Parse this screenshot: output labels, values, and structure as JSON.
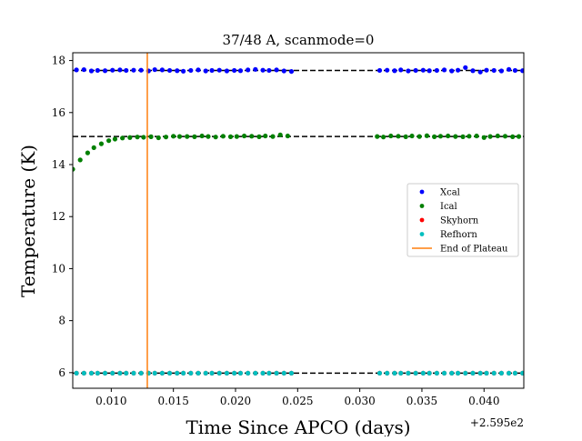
{
  "chart_data": {
    "type": "scatter",
    "title": "37/48 A, scanmode=0",
    "xlabel": "Time Since APCO (days)",
    "ylabel": "Temperature (K)",
    "x_offset_label": "+2.595e2",
    "xlim": [
      0.0069,
      0.0432
    ],
    "ylim": [
      5.4,
      18.3
    ],
    "x_ticks": [
      0.01,
      0.015,
      0.02,
      0.025,
      0.03,
      0.035,
      0.04
    ],
    "x_tick_labels": [
      "0.010",
      "0.015",
      "0.020",
      "0.025",
      "0.030",
      "0.035",
      "0.040"
    ],
    "y_ticks": [
      6,
      8,
      10,
      12,
      14,
      16,
      18
    ],
    "y_tick_labels": [
      "6",
      "8",
      "10",
      "12",
      "14",
      "16",
      "18"
    ],
    "grid": false,
    "legend_position": "center-right",
    "reference_lines": [
      17.62,
      15.08,
      5.98
    ],
    "end_of_plateau_x": 0.0129,
    "series": [
      {
        "name": "Xcal",
        "color": "#0000ff",
        "marker": "dot",
        "x": [
          0.0072,
          0.0078,
          0.0084,
          0.0089,
          0.0095,
          0.0101,
          0.0107,
          0.0112,
          0.0118,
          0.0124,
          0.013,
          0.0135,
          0.0141,
          0.0147,
          0.0153,
          0.0158,
          0.0164,
          0.017,
          0.0176,
          0.0181,
          0.0187,
          0.0193,
          0.0199,
          0.0204,
          0.021,
          0.0216,
          0.0222,
          0.0227,
          0.0233,
          0.0239,
          0.0245,
          0.0316,
          0.0322,
          0.0328,
          0.0333,
          0.0339,
          0.0345,
          0.0351,
          0.0356,
          0.0362,
          0.0368,
          0.0374,
          0.0379,
          0.0385,
          0.0391,
          0.0397,
          0.0402,
          0.0408,
          0.0414,
          0.042,
          0.0425,
          0.0431
        ],
        "y": [
          17.64,
          17.65,
          17.6,
          17.62,
          17.61,
          17.63,
          17.64,
          17.62,
          17.63,
          17.63,
          17.6,
          17.65,
          17.64,
          17.62,
          17.61,
          17.59,
          17.62,
          17.64,
          17.6,
          17.62,
          17.63,
          17.6,
          17.62,
          17.61,
          17.64,
          17.66,
          17.63,
          17.62,
          17.64,
          17.6,
          17.58,
          17.62,
          17.63,
          17.61,
          17.64,
          17.6,
          17.62,
          17.63,
          17.61,
          17.62,
          17.64,
          17.6,
          17.63,
          17.73,
          17.61,
          17.56,
          17.63,
          17.62,
          17.6,
          17.66,
          17.62,
          17.61
        ]
      },
      {
        "name": "Ical",
        "color": "#008000",
        "marker": "dot",
        "x": [
          0.0069,
          0.0075,
          0.0081,
          0.0086,
          0.0092,
          0.0098,
          0.0103,
          0.0109,
          0.0115,
          0.0121,
          0.0126,
          0.0132,
          0.0138,
          0.0144,
          0.015,
          0.0155,
          0.0161,
          0.0167,
          0.0173,
          0.0178,
          0.0184,
          0.019,
          0.0196,
          0.0201,
          0.0207,
          0.0213,
          0.0219,
          0.0224,
          0.023,
          0.0236,
          0.0242,
          0.0314,
          0.0319,
          0.0325,
          0.0331,
          0.0337,
          0.0342,
          0.0348,
          0.0354,
          0.036,
          0.0365,
          0.0371,
          0.0377,
          0.0383,
          0.0388,
          0.0394,
          0.04,
          0.0405,
          0.0411,
          0.0417,
          0.0423,
          0.0428
        ],
        "y": [
          13.82,
          14.18,
          14.45,
          14.65,
          14.8,
          14.92,
          14.98,
          15.02,
          15.04,
          15.06,
          15.05,
          15.07,
          15.03,
          15.06,
          15.09,
          15.08,
          15.08,
          15.07,
          15.1,
          15.08,
          15.06,
          15.09,
          15.07,
          15.08,
          15.1,
          15.09,
          15.07,
          15.1,
          15.08,
          15.14,
          15.1,
          15.08,
          15.06,
          15.1,
          15.09,
          15.07,
          15.1,
          15.08,
          15.11,
          15.07,
          15.09,
          15.1,
          15.08,
          15.07,
          15.09,
          15.1,
          15.04,
          15.08,
          15.1,
          15.09,
          15.07,
          15.08
        ]
      },
      {
        "name": "Skyhorn",
        "color": "#ff0000",
        "marker": "dot",
        "x": [
          0.0072,
          0.0078,
          0.0084,
          0.0089,
          0.0095,
          0.0101,
          0.0107,
          0.0112,
          0.0118,
          0.0124,
          0.013,
          0.0135,
          0.0141,
          0.0147,
          0.0153,
          0.0158,
          0.0164,
          0.017,
          0.0176,
          0.0181,
          0.0187,
          0.0193,
          0.0199,
          0.0204,
          0.021,
          0.0216,
          0.0222,
          0.0227,
          0.0233,
          0.0239,
          0.0245,
          0.0316,
          0.0322,
          0.0328,
          0.0333,
          0.0339,
          0.0345,
          0.0351,
          0.0356,
          0.0362,
          0.0368,
          0.0374,
          0.0379,
          0.0385,
          0.0391,
          0.0397,
          0.0402,
          0.0408,
          0.0414,
          0.042,
          0.0425,
          0.0431
        ],
        "y": [
          5.98,
          5.98,
          5.98,
          5.98,
          5.98,
          5.98,
          5.98,
          5.98,
          5.98,
          5.98,
          5.98,
          5.98,
          5.98,
          5.98,
          5.98,
          5.98,
          5.98,
          5.98,
          5.98,
          5.98,
          5.98,
          5.98,
          5.98,
          5.98,
          5.98,
          5.98,
          5.98,
          5.98,
          5.98,
          5.98,
          5.98,
          5.98,
          5.98,
          5.98,
          5.98,
          5.98,
          5.98,
          5.98,
          5.98,
          5.98,
          5.98,
          5.98,
          5.98,
          5.98,
          5.98,
          5.98,
          5.98,
          5.98,
          5.98,
          5.98,
          5.98,
          5.98
        ]
      },
      {
        "name": "Refhorn",
        "color": "#00bfbf",
        "marker": "dot",
        "x": [
          0.0072,
          0.0078,
          0.0084,
          0.0089,
          0.0095,
          0.0101,
          0.0107,
          0.0112,
          0.0118,
          0.0124,
          0.013,
          0.0135,
          0.0141,
          0.0147,
          0.0153,
          0.0158,
          0.0164,
          0.017,
          0.0176,
          0.0181,
          0.0187,
          0.0193,
          0.0199,
          0.0204,
          0.021,
          0.0216,
          0.0222,
          0.0227,
          0.0233,
          0.0239,
          0.0245,
          0.0316,
          0.0322,
          0.0328,
          0.0333,
          0.0339,
          0.0345,
          0.0351,
          0.0356,
          0.0362,
          0.0368,
          0.0374,
          0.0379,
          0.0385,
          0.0391,
          0.0397,
          0.0402,
          0.0408,
          0.0414,
          0.042,
          0.0425,
          0.0431
        ],
        "y": [
          5.98,
          5.98,
          5.98,
          5.98,
          5.98,
          5.98,
          5.98,
          5.98,
          5.98,
          5.98,
          5.98,
          5.98,
          5.98,
          5.98,
          5.98,
          5.98,
          5.98,
          5.98,
          5.98,
          5.98,
          5.98,
          5.98,
          5.98,
          5.98,
          5.98,
          5.98,
          5.98,
          5.98,
          5.98,
          5.98,
          5.98,
          5.98,
          5.98,
          5.98,
          5.98,
          5.98,
          5.98,
          5.98,
          5.98,
          5.98,
          5.98,
          5.98,
          5.98,
          5.98,
          5.98,
          5.98,
          5.98,
          5.98,
          5.98,
          5.98,
          5.98,
          5.98
        ]
      }
    ],
    "legend": [
      {
        "label": "Xcal",
        "color": "#0000ff",
        "kind": "dot"
      },
      {
        "label": "Ical",
        "color": "#008000",
        "kind": "dot"
      },
      {
        "label": "Skyhorn",
        "color": "#ff0000",
        "kind": "dot"
      },
      {
        "label": "Refhorn",
        "color": "#00bfbf",
        "kind": "dot"
      },
      {
        "label": "End of Plateau",
        "color": "#ff7f0e",
        "kind": "line"
      }
    ]
  }
}
